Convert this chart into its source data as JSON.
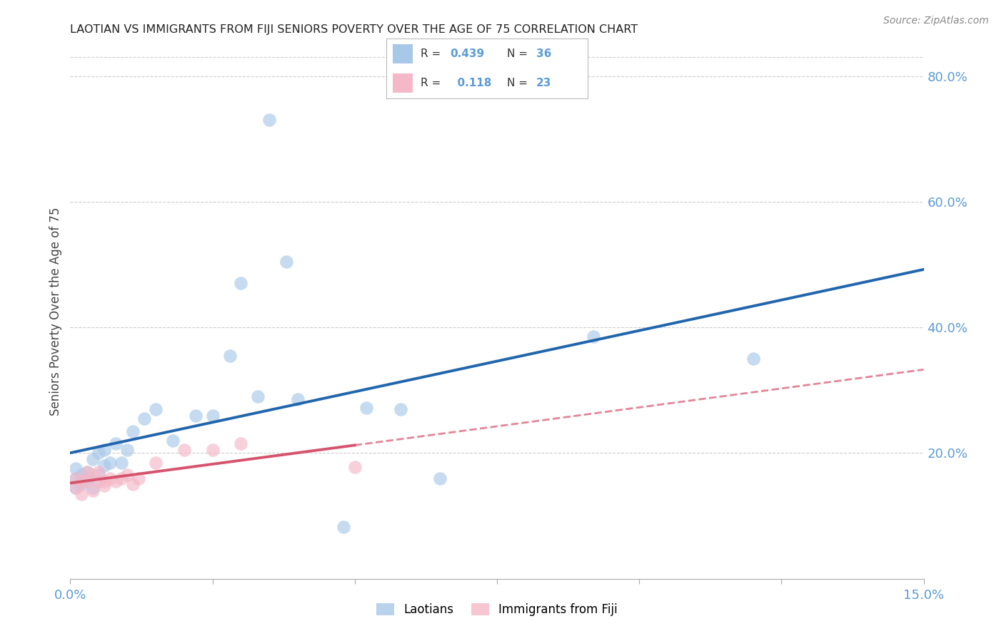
{
  "title": "LAOTIAN VS IMMIGRANTS FROM FIJI SENIORS POVERTY OVER THE AGE OF 75 CORRELATION CHART",
  "source": "Source: ZipAtlas.com",
  "tick_color": "#5b9bd5",
  "ylabel": "Seniors Poverty Over the Age of 75",
  "xlim": [
    0.0,
    0.15
  ],
  "ylim": [
    0.0,
    0.85
  ],
  "laotian_R": "0.439",
  "laotian_N": "36",
  "fiji_R": "0.118",
  "fiji_N": "23",
  "blue_scatter_color": "#a8c8e8",
  "pink_scatter_color": "#f4b8c8",
  "blue_line_color": "#2166ac",
  "pink_line_color": "#d6536d",
  "laotian_x": [
    0.001,
    0.001,
    0.001,
    0.002,
    0.002,
    0.002,
    0.003,
    0.003,
    0.004,
    0.004,
    0.005,
    0.005,
    0.006,
    0.006,
    0.007,
    0.008,
    0.009,
    0.01,
    0.011,
    0.013,
    0.015,
    0.018,
    0.022,
    0.025,
    0.028,
    0.03,
    0.033,
    0.035,
    0.038,
    0.04,
    0.048,
    0.052,
    0.058,
    0.065,
    0.092,
    0.12
  ],
  "laotian_y": [
    0.145,
    0.16,
    0.175,
    0.15,
    0.165,
    0.155,
    0.16,
    0.17,
    0.145,
    0.19,
    0.165,
    0.2,
    0.18,
    0.205,
    0.185,
    0.215,
    0.185,
    0.205,
    0.235,
    0.255,
    0.27,
    0.22,
    0.26,
    0.26,
    0.355,
    0.47,
    0.29,
    0.73,
    0.505,
    0.285,
    0.082,
    0.272,
    0.27,
    0.16,
    0.385,
    0.35
  ],
  "fiji_x": [
    0.001,
    0.001,
    0.002,
    0.002,
    0.003,
    0.003,
    0.004,
    0.004,
    0.005,
    0.005,
    0.006,
    0.006,
    0.007,
    0.008,
    0.009,
    0.01,
    0.011,
    0.012,
    0.015,
    0.02,
    0.025,
    0.03,
    0.05
  ],
  "fiji_y": [
    0.145,
    0.16,
    0.135,
    0.155,
    0.155,
    0.17,
    0.14,
    0.165,
    0.155,
    0.17,
    0.148,
    0.155,
    0.16,
    0.155,
    0.16,
    0.165,
    0.15,
    0.16,
    0.185,
    0.205,
    0.205,
    0.215,
    0.178
  ],
  "background_color": "#ffffff",
  "grid_color": "#cccccc"
}
